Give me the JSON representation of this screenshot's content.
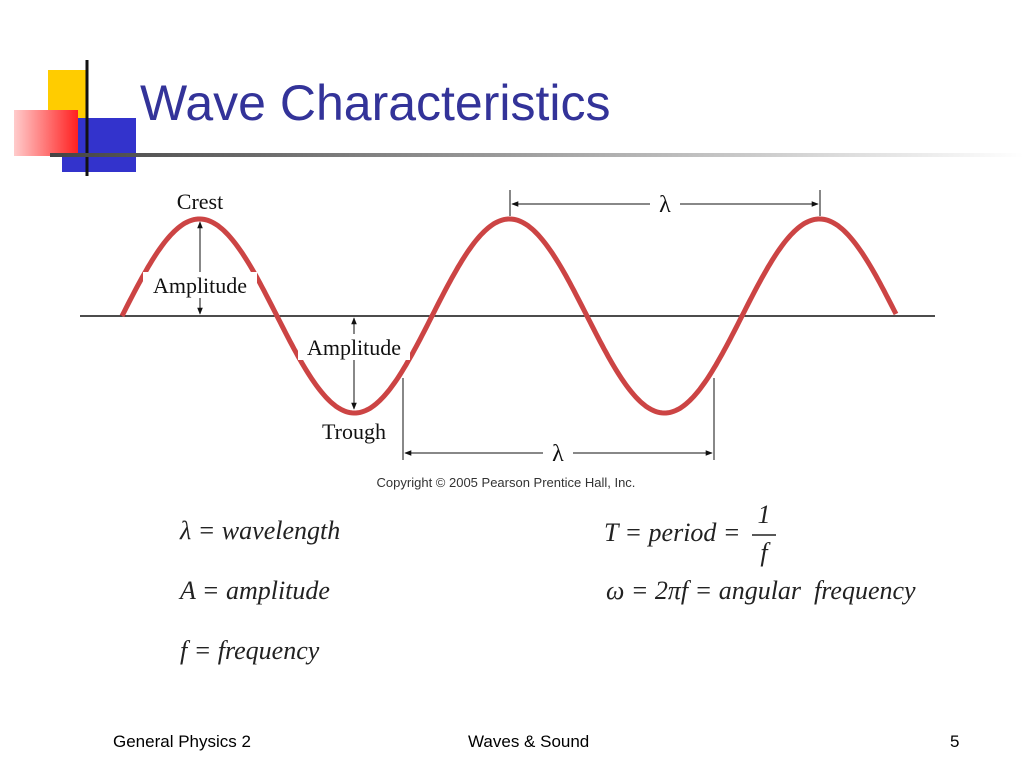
{
  "header": {
    "title": "Wave Characteristics"
  },
  "diagram": {
    "crest": "Crest",
    "amplitude_top": "Amplitude",
    "amplitude_bottom": "Amplitude",
    "trough": "Trough",
    "wavelength_top": "λ",
    "wavelength_bottom": "λ",
    "copyright": "Copyright © 2005 Pearson Prentice Hall, Inc."
  },
  "equations": {
    "wavelength": "λ = wavelength",
    "amplitude": "A = amplitude",
    "frequency": "f = frequency",
    "period": "T = period =",
    "period_numerator": "1",
    "period_denominator": "f",
    "angular": "ω = 2πf = angular  frequency"
  },
  "footer": {
    "left": "General Physics 2",
    "center": "Waves & Sound",
    "page": 5
  }
}
